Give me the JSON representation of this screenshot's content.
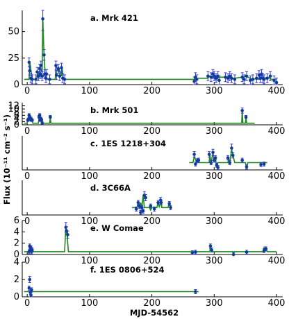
{
  "colors": {
    "model_line": "#1a8a1a",
    "marker": "#0b3d91",
    "error_bar": "#3a3ad8",
    "axis": "#000000"
  },
  "labels": {
    "xlabel": "MJD-54562",
    "ylabel": "Flux (10⁻¹¹ cm⁻² s⁻¹)"
  },
  "chart_data": [
    {
      "type": "line",
      "title": "a. Mrk 421",
      "xlim": [
        -8,
        410
      ],
      "ylim": [
        0,
        70
      ],
      "xticks": [
        "0",
        "100",
        "200",
        "300",
        "400"
      ],
      "yticks": [
        "0",
        "25",
        "50"
      ],
      "ytick_values": [
        0,
        25,
        50
      ],
      "model_x": [
        -5,
        3,
        4,
        8,
        15,
        18,
        22,
        24,
        25,
        27,
        29,
        31,
        45,
        46,
        50,
        51,
        55,
        56,
        58,
        60,
        270,
        275,
        290,
        292,
        298,
        300,
        305,
        308,
        320,
        325,
        328,
        333,
        345,
        352,
        360,
        372,
        376,
        380,
        386,
        392,
        400
      ],
      "model_y": [
        5,
        5,
        22,
        5,
        5,
        11,
        15,
        11,
        62,
        28,
        8,
        5,
        5,
        18,
        12,
        15,
        8,
        16,
        5,
        5,
        5,
        6,
        6,
        8,
        7,
        8,
        6,
        7,
        7,
        8,
        6,
        6,
        7,
        8,
        5,
        6,
        10,
        6,
        7,
        5,
        5
      ],
      "points": [
        [
          3,
          21
        ],
        [
          4,
          13
        ],
        [
          6,
          6
        ],
        [
          8,
          5
        ],
        [
          14,
          5
        ],
        [
          16,
          12
        ],
        [
          18,
          8
        ],
        [
          20,
          15
        ],
        [
          21,
          10
        ],
        [
          22,
          18
        ],
        [
          24,
          8
        ],
        [
          25,
          62
        ],
        [
          27,
          28
        ],
        [
          28,
          10
        ],
        [
          30,
          6
        ],
        [
          31,
          10
        ],
        [
          36,
          5
        ],
        [
          46,
          18
        ],
        [
          47,
          9
        ],
        [
          50,
          15
        ],
        [
          52,
          8
        ],
        [
          55,
          16
        ],
        [
          57,
          6
        ],
        [
          60,
          5
        ],
        [
          268,
          3
        ],
        [
          270,
          7
        ],
        [
          272,
          5
        ],
        [
          290,
          8
        ],
        [
          295,
          7
        ],
        [
          298,
          10
        ],
        [
          300,
          8
        ],
        [
          303,
          6
        ],
        [
          306,
          8
        ],
        [
          308,
          4
        ],
        [
          318,
          7
        ],
        [
          322,
          6
        ],
        [
          325,
          8
        ],
        [
          328,
          6
        ],
        [
          333,
          5
        ],
        [
          345,
          7
        ],
        [
          348,
          5
        ],
        [
          352,
          8
        ],
        [
          358,
          4
        ],
        [
          362,
          5
        ],
        [
          368,
          6
        ],
        [
          372,
          9
        ],
        [
          374,
          6
        ],
        [
          376,
          10
        ],
        [
          378,
          6
        ],
        [
          380,
          5
        ],
        [
          385,
          6
        ],
        [
          390,
          8
        ],
        [
          396,
          4
        ],
        [
          400,
          2
        ]
      ]
    },
    {
      "type": "line",
      "title": "b. Mrk 501",
      "xlim": [
        -8,
        410
      ],
      "ylim": [
        0,
        14
      ],
      "xticks": [
        "0",
        "100",
        "200",
        "300",
        "400"
      ],
      "yticks": [
        "0",
        "2",
        "4",
        "6",
        "8",
        "10",
        "12"
      ],
      "ytick_values": [
        0,
        2,
        4,
        6,
        8,
        10,
        12
      ],
      "model_x": [
        -5,
        0,
        1,
        3,
        5,
        6,
        7,
        9,
        18,
        19,
        20,
        22,
        23,
        24,
        25,
        36,
        37,
        38,
        344,
        345,
        346,
        350,
        351,
        352,
        365
      ],
      "model_y": [
        1,
        1,
        3,
        5,
        2,
        4,
        3,
        1,
        1,
        5,
        3,
        4,
        1,
        2,
        1,
        1,
        5,
        1,
        1,
        9,
        1,
        1,
        5,
        1,
        1
      ],
      "points": [
        [
          1,
          3
        ],
        [
          2,
          3.5
        ],
        [
          3,
          6
        ],
        [
          4,
          5
        ],
        [
          5,
          4
        ],
        [
          6,
          4
        ],
        [
          7,
          3
        ],
        [
          8,
          3
        ],
        [
          19,
          5
        ],
        [
          20,
          6
        ],
        [
          21,
          3
        ],
        [
          22,
          4
        ],
        [
          23,
          3
        ],
        [
          24,
          1
        ],
        [
          37,
          5
        ],
        [
          345,
          9
        ],
        [
          351,
          5
        ]
      ]
    },
    {
      "type": "line",
      "title": "c. 1ES 1218+304",
      "xlim": [
        -8,
        410
      ],
      "ylim": [
        0,
        7
      ],
      "xticks": [
        "0",
        "100",
        "200",
        "300",
        "400"
      ],
      "yticks": [],
      "ytick_values": [],
      "model_x": [
        260,
        266,
        268,
        272,
        273,
        275,
        292,
        293,
        295,
        298,
        300,
        302,
        304,
        306,
        322,
        323,
        325,
        328,
        330,
        333,
        350,
        352,
        354,
        385
      ],
      "model_y": [
        1.5,
        1.5,
        2.8,
        1.5,
        2,
        1.5,
        1.5,
        3.2,
        1.5,
        3.5,
        2,
        2.5,
        0.5,
        1.5,
        1.5,
        2.5,
        1.5,
        4.2,
        3,
        1.5,
        1.5,
        0.5,
        1.5,
        1.5
      ],
      "points": [
        [
          268,
          3.2
        ],
        [
          270,
          1.2
        ],
        [
          273,
          1.9
        ],
        [
          275,
          2
        ],
        [
          292,
          3.2
        ],
        [
          295,
          1.5
        ],
        [
          298,
          3.6
        ],
        [
          300,
          2
        ],
        [
          302,
          2.5
        ],
        [
          304,
          1
        ],
        [
          306,
          0.5
        ],
        [
          322,
          2.5
        ],
        [
          325,
          1.5
        ],
        [
          328,
          4.5
        ],
        [
          330,
          3
        ],
        [
          345,
          2
        ],
        [
          352,
          0.6
        ],
        [
          375,
          1.1
        ],
        [
          380,
          1.2
        ]
      ]
    },
    {
      "type": "line",
      "title": "d. 3C66A",
      "xlim": [
        -8,
        410
      ],
      "ylim": [
        0,
        7
      ],
      "xticks": [
        "0",
        "100",
        "200",
        "300",
        "400"
      ],
      "yticks": [],
      "ytick_values": [],
      "model_x": [
        168,
        176,
        178,
        180,
        182,
        184,
        186,
        188,
        192,
        196,
        198,
        200,
        208,
        210,
        212,
        214,
        216,
        226,
        228,
        230
      ],
      "model_y": [
        1.5,
        1.5,
        2.5,
        1.2,
        2.5,
        1.5,
        4,
        1.5,
        1.5,
        1.5,
        1,
        1.5,
        1.5,
        2.5,
        1.5,
        3,
        1.5,
        1.5,
        2.5,
        1.5
      ],
      "points": [
        [
          175,
          1.2
        ],
        [
          178,
          2.5
        ],
        [
          180,
          1.8
        ],
        [
          182,
          0.5
        ],
        [
          184,
          1.5
        ],
        [
          186,
          0.8
        ],
        [
          188,
          4
        ],
        [
          190,
          3.5
        ],
        [
          198,
          1.8
        ],
        [
          204,
          1.2
        ],
        [
          210,
          2.5
        ],
        [
          214,
          3
        ],
        [
          215,
          2.5
        ],
        [
          228,
          2.3
        ],
        [
          230,
          1.5
        ]
      ]
    },
    {
      "type": "line",
      "title": "e. W Comae",
      "xlim": [
        -8,
        410
      ],
      "ylim": [
        0,
        6
      ],
      "xticks": [
        "0",
        "100",
        "200",
        "300",
        "400"
      ],
      "yticks": [
        "0",
        "2",
        "4",
        "6"
      ],
      "ytick_values": [
        0,
        2,
        4,
        6
      ],
      "model_x": [
        -5,
        3,
        4,
        5,
        6,
        7,
        9,
        60,
        62,
        64,
        66,
        263,
        264,
        266,
        293,
        294,
        296,
        330,
        331,
        332,
        378,
        380,
        382,
        383,
        385,
        400
      ],
      "model_y": [
        0.5,
        0.5,
        1.5,
        0.5,
        1.2,
        0.5,
        0.5,
        0.5,
        5,
        3.5,
        0.5,
        0.5,
        0.2,
        0.5,
        0.5,
        1.5,
        0.5,
        0.5,
        0,
        0.5,
        0.5,
        1.2,
        0.5,
        1.2,
        0.5,
        0.5
      ],
      "points": [
        [
          3,
          0.5
        ],
        [
          4,
          1.5
        ],
        [
          5,
          0.8
        ],
        [
          6,
          1.2
        ],
        [
          7,
          0.5
        ],
        [
          8,
          0.8
        ],
        [
          62,
          4.8
        ],
        [
          63,
          4.2
        ],
        [
          65,
          3.5
        ],
        [
          265,
          0.3
        ],
        [
          270,
          0.4
        ],
        [
          294,
          1.5
        ],
        [
          296,
          0.8
        ],
        [
          331,
          0
        ],
        [
          352,
          0.4
        ],
        [
          380,
          0.7
        ],
        [
          383,
          1
        ]
      ]
    },
    {
      "type": "line",
      "title": "f. 1ES 0806+524",
      "xlim": [
        -8,
        410
      ],
      "ylim": [
        0,
        4
      ],
      "xticks": [
        "0",
        "100",
        "200",
        "300",
        "400"
      ],
      "yticks": [
        "0",
        "2",
        "4"
      ],
      "ytick_values": [
        0,
        2,
        4
      ],
      "model_x": [
        -5,
        275
      ],
      "model_y": [
        0.6,
        0.6
      ],
      "points": [
        [
          3,
          1
        ],
        [
          4,
          2
        ],
        [
          5,
          0.5
        ],
        [
          6,
          0.2
        ],
        [
          7,
          0.8
        ],
        [
          270,
          0.6
        ]
      ]
    }
  ]
}
